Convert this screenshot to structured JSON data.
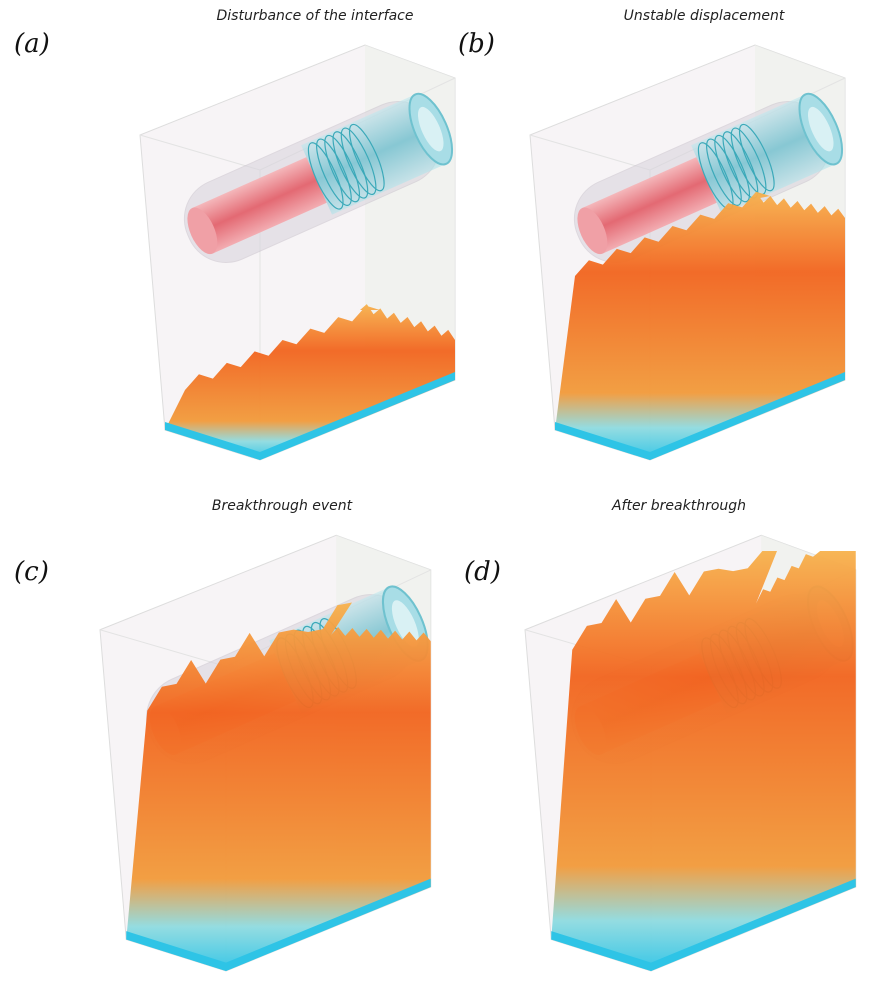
{
  "panels": [
    {
      "label": "(a)",
      "title": "Disturbance of the interface"
    },
    {
      "label": "(b)",
      "title": "Unstable displacement"
    },
    {
      "label": "(c)",
      "title": "Breakthrough event"
    },
    {
      "label": "(d)",
      "title": "After breakthrough"
    }
  ]
}
